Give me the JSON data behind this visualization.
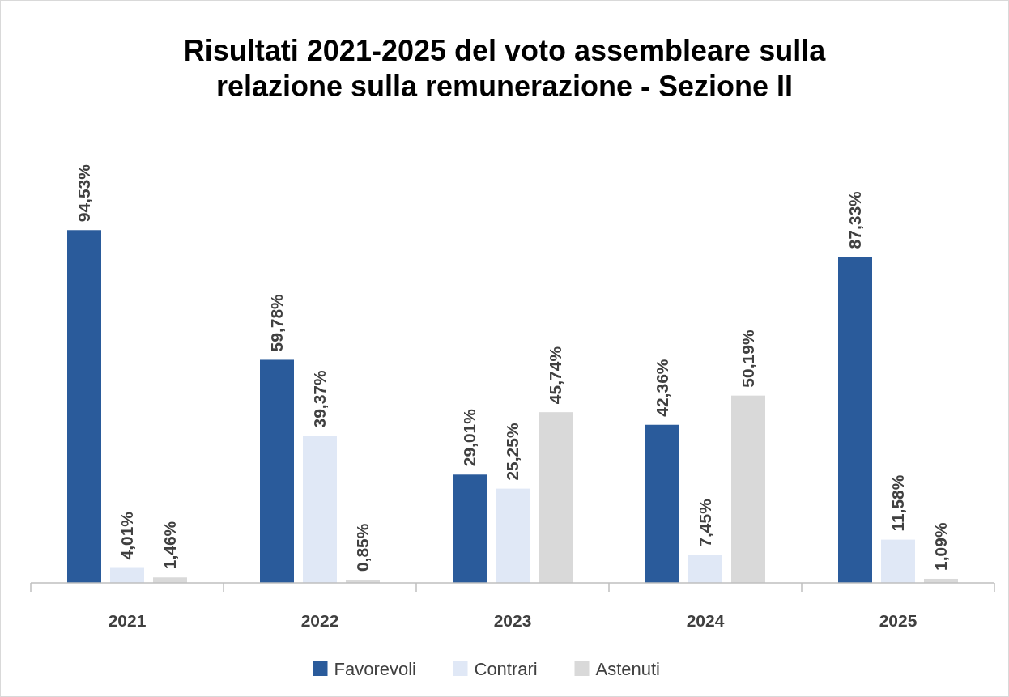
{
  "chart_data": {
    "type": "bar",
    "title": "Risultati 2021-2025 del voto assembleare sulla relazione sulla remunerazione - Sezione II",
    "categories": [
      "2021",
      "2022",
      "2023",
      "2024",
      "2025"
    ],
    "series": [
      {
        "name": "Favorevoli",
        "color": "#2a5b9b",
        "values": [
          94.53,
          59.78,
          29.01,
          42.36,
          87.33
        ],
        "value_labels": [
          "94,53%",
          "59,78%",
          "29,01%",
          "42,36%",
          "87,33%"
        ]
      },
      {
        "name": "Contrari",
        "color": "#e0e8f6",
        "values": [
          4.01,
          39.37,
          25.25,
          7.45,
          11.58
        ],
        "value_labels": [
          "4,01%",
          "39,37%",
          "25,25%",
          "7,45%",
          "11,58%"
        ]
      },
      {
        "name": "Astenuti",
        "color": "#d9d9d9",
        "values": [
          1.46,
          0.85,
          45.74,
          50.19,
          1.09
        ],
        "value_labels": [
          "1,46%",
          "0,85%",
          "45,74%",
          "50,19%",
          "1,09%"
        ]
      }
    ],
    "legend": "bottom"
  }
}
